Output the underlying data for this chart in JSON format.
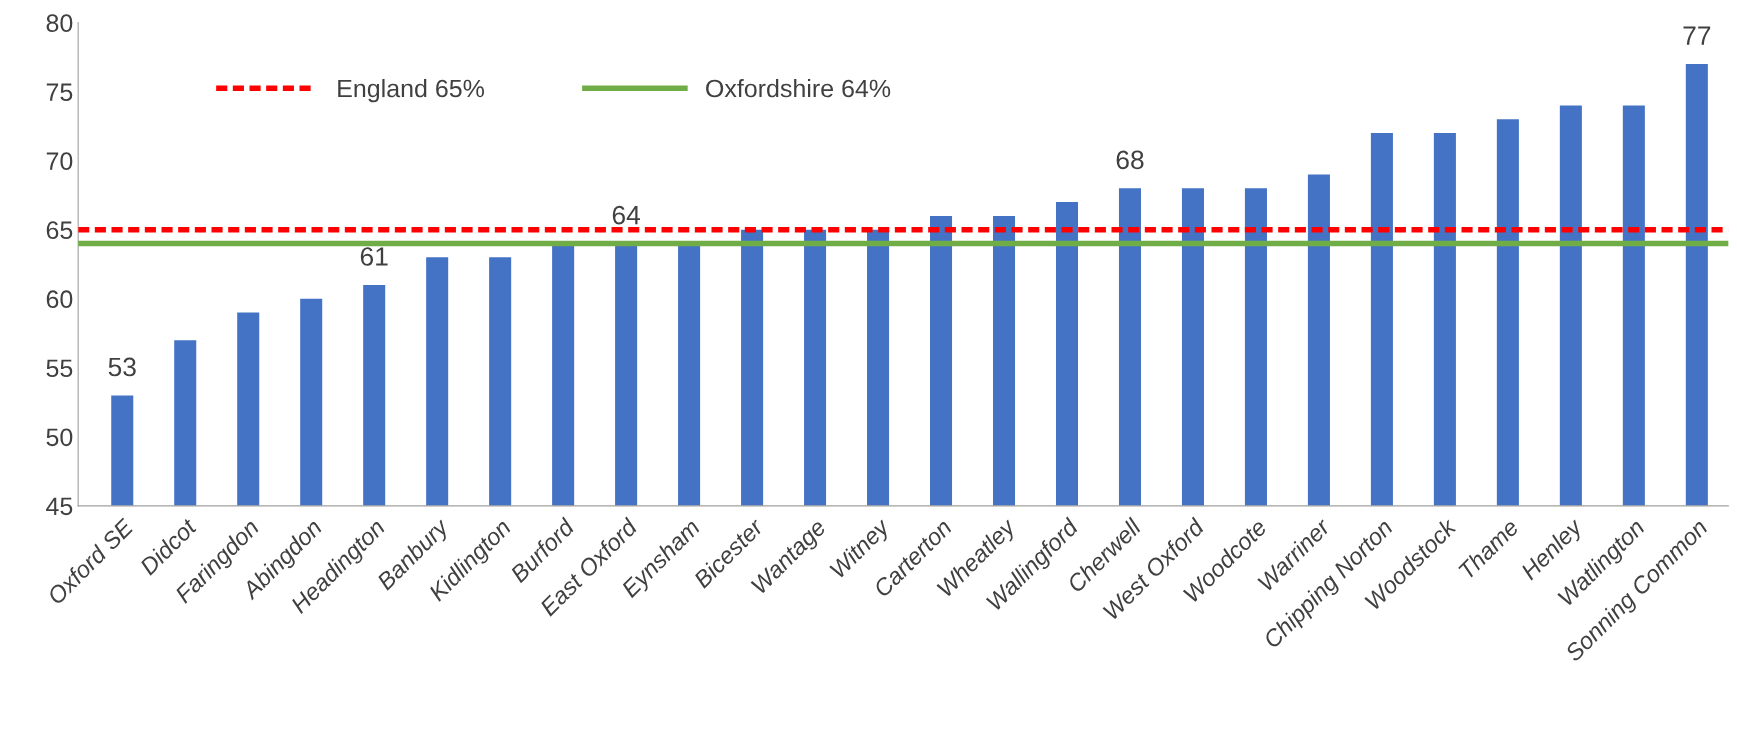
{
  "chart_data": {
    "type": "bar",
    "categories": [
      "Oxford SE",
      "Didcot",
      "Faringdon",
      "Abingdon",
      "Headington",
      "Banbury",
      "Kidlington",
      "Burford",
      "East Oxford",
      "Eynsham",
      "Bicester",
      "Wantage",
      "Witney",
      "Carterton",
      "Wheatley",
      "Wallingford",
      "Cherwell",
      "West Oxford",
      "Woodcote",
      "Warriner",
      "Chipping Norton",
      "Woodstock",
      "Thame",
      "Henley",
      "Watlington",
      "Sonning Common"
    ],
    "values": [
      53,
      57,
      59,
      60,
      61,
      63,
      63,
      64,
      64,
      64,
      65,
      65,
      65,
      66,
      66,
      67,
      68,
      68,
      68,
      69,
      72,
      72,
      73,
      74,
      74,
      77
    ],
    "value_labels": [
      "53",
      null,
      null,
      null,
      "61",
      null,
      null,
      null,
      "64",
      null,
      null,
      null,
      null,
      null,
      null,
      null,
      "68",
      null,
      null,
      null,
      null,
      null,
      null,
      null,
      null,
      "77"
    ],
    "color": "#4472c4",
    "ylim": [
      45,
      80
    ],
    "yticks": [
      45,
      50,
      55,
      60,
      65,
      70,
      75,
      80
    ],
    "grid": false,
    "legend": "top left",
    "ref_lines": [
      {
        "axis": "y",
        "value": 65,
        "label": "England 65%",
        "color": "#ff0000",
        "line_style": "dashed"
      },
      {
        "axis": "y",
        "value": 64,
        "label": "Oxfordshire 64%",
        "color": "#70ad47",
        "line_style": "solid"
      }
    ]
  }
}
